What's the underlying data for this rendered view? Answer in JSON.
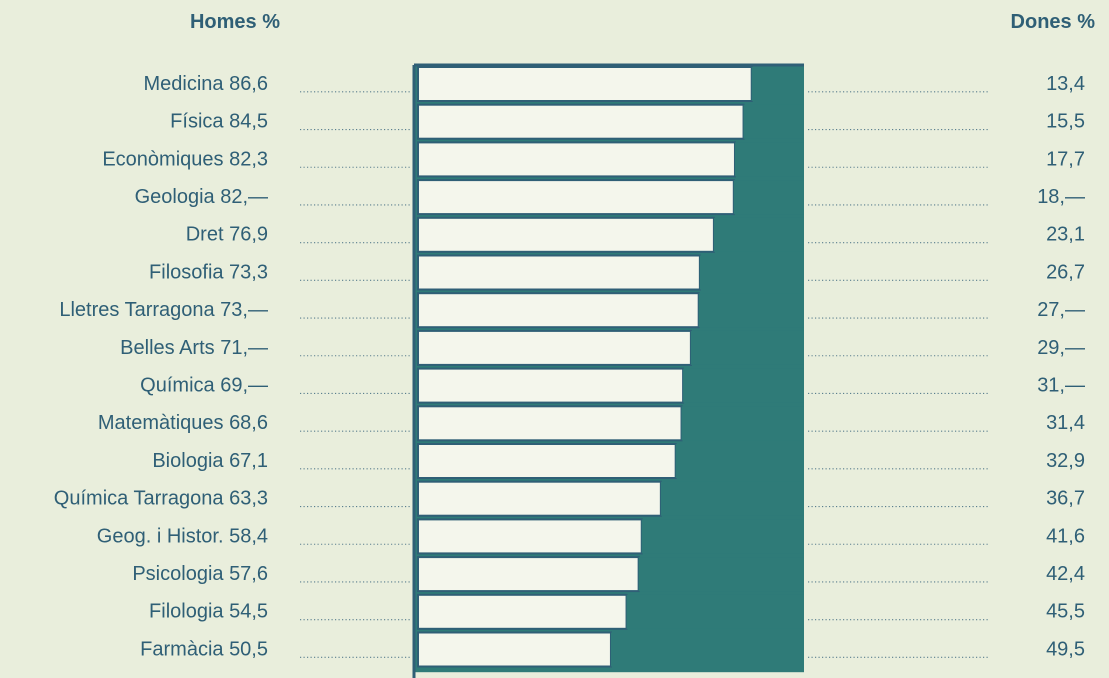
{
  "chart_data": {
    "type": "bar",
    "header_left": "Homes %",
    "header_right": "Dones %",
    "categories": [
      "Medicina",
      "Física",
      "Econòmiques",
      "Geologia",
      "Dret",
      "Filosofia",
      "Lletres Tarragona",
      "Belles Arts",
      "Química",
      "Matemàtiques",
      "Biologia",
      "Química Tarragona",
      "Geog. i Histor.",
      "Psicologia",
      "Filologia",
      "Farmàcia"
    ],
    "series": [
      {
        "name": "Homes %",
        "values": [
          86.6,
          84.5,
          82.3,
          82.0,
          76.9,
          73.3,
          73.0,
          71.0,
          69.0,
          68.6,
          67.1,
          63.3,
          58.4,
          57.6,
          54.5,
          50.5
        ],
        "labels": [
          "86,6",
          "84,5",
          "82,3",
          "82,—",
          "76,9",
          "73,3",
          "73,—",
          "71,—",
          "69,—",
          "68,6",
          "67,1",
          "63,3",
          "58,4",
          "57,6",
          "54,5",
          "50,5"
        ]
      },
      {
        "name": "Dones %",
        "values": [
          13.4,
          15.5,
          17.7,
          18.0,
          23.1,
          26.7,
          27.0,
          29.0,
          31.0,
          31.4,
          32.9,
          36.7,
          41.6,
          42.4,
          45.5,
          49.5
        ],
        "labels": [
          "13,4",
          "15,5",
          "17,7",
          "18,—",
          "23,1",
          "26,7",
          "27,—",
          "29,—",
          "31,—",
          "31,4",
          "32,9",
          "36,7",
          "41,6",
          "42,4",
          "45,5",
          "49,5"
        ]
      }
    ],
    "stacked": true,
    "ylim": [
      0,
      100
    ],
    "colors": {
      "background": "#e9eedc",
      "homes_fill": "#f4f6ec",
      "dones_fill": "#2f7b78",
      "bar_border": "#2f5f76",
      "text": "#2f5f76"
    }
  }
}
